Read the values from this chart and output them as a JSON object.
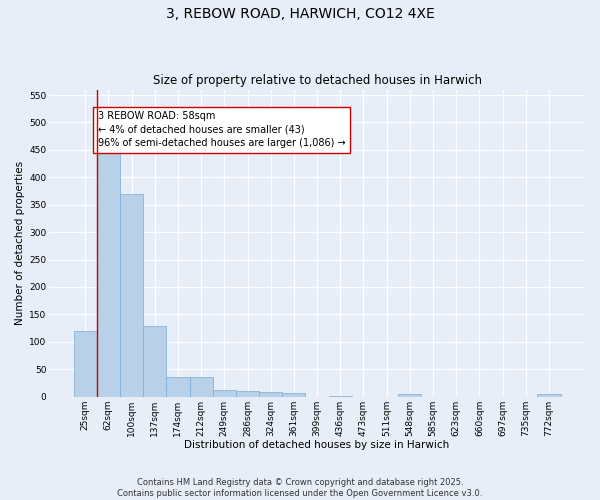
{
  "title": "3, REBOW ROAD, HARWICH, CO12 4XE",
  "subtitle": "Size of property relative to detached houses in Harwich",
  "xlabel": "Distribution of detached houses by size in Harwich",
  "ylabel": "Number of detached properties",
  "categories": [
    "25sqm",
    "62sqm",
    "100sqm",
    "137sqm",
    "174sqm",
    "212sqm",
    "249sqm",
    "286sqm",
    "324sqm",
    "361sqm",
    "399sqm",
    "436sqm",
    "473sqm",
    "511sqm",
    "548sqm",
    "585sqm",
    "623sqm",
    "660sqm",
    "697sqm",
    "735sqm",
    "772sqm"
  ],
  "values": [
    120,
    455,
    370,
    128,
    35,
    35,
    13,
    10,
    8,
    6,
    0,
    1,
    0,
    0,
    5,
    0,
    0,
    0,
    0,
    0,
    5
  ],
  "bar_color": "#b8d0e8",
  "bar_edge_color": "#7aadd4",
  "vline_color": "#cc0000",
  "annotation_text": "3 REBOW ROAD: 58sqm\n← 4% of detached houses are smaller (43)\n96% of semi-detached houses are larger (1,086) →",
  "annotation_box_color": "#ffffff",
  "annotation_box_edge_color": "#cc0000",
  "ylim": [
    0,
    560
  ],
  "yticks": [
    0,
    50,
    100,
    150,
    200,
    250,
    300,
    350,
    400,
    450,
    500,
    550
  ],
  "footer": "Contains HM Land Registry data © Crown copyright and database right 2025.\nContains public sector information licensed under the Open Government Licence v3.0.",
  "bg_color": "#e8eef8",
  "plot_bg_color": "#e8eef8",
  "grid_color": "#ffffff",
  "title_fontsize": 10,
  "subtitle_fontsize": 8.5,
  "axis_label_fontsize": 7.5,
  "tick_fontsize": 6.5,
  "annotation_fontsize": 7,
  "footer_fontsize": 6
}
